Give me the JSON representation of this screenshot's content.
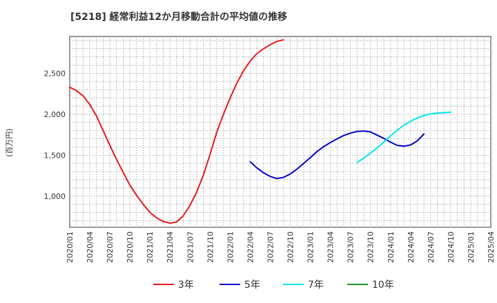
{
  "chart_data": {
    "type": "line",
    "title": "[5218]  経常利益12か月移動合計の平均値の推移",
    "ylabel": "(百万円)",
    "xlabel": "",
    "ylim": [
      620,
      2950
    ],
    "yticks": [
      1000,
      1500,
      2000,
      2500
    ],
    "ytick_labels": [
      "1,000",
      "1,500",
      "2,000",
      "2,500"
    ],
    "x_labels": [
      "2020/01",
      "2020/04",
      "2020/07",
      "2020/10",
      "2021/01",
      "2021/04",
      "2021/07",
      "2021/10",
      "2022/01",
      "2022/04",
      "2022/07",
      "2022/10",
      "2023/01",
      "2023/04",
      "2023/07",
      "2023/10",
      "2024/01",
      "2024/04",
      "2024/07",
      "2024/10",
      "2025/01",
      "2025/04"
    ],
    "series": [
      {
        "name": "3年",
        "color": "#e41a1c",
        "values": [
          2330,
          2290,
          2225,
          2120,
          1980,
          1800,
          1620,
          1450,
          1290,
          1135,
          1010,
          900,
          800,
          735,
          690,
          670,
          685,
          760,
          890,
          1050,
          1260,
          1510,
          1780,
          2000,
          2200,
          2380,
          2530,
          2650,
          2740,
          2800,
          2850,
          2890,
          2910
        ]
      },
      {
        "name": "5年",
        "color": "#0000cc",
        "values": [
          null,
          null,
          null,
          null,
          null,
          null,
          null,
          null,
          null,
          null,
          null,
          null,
          null,
          null,
          null,
          null,
          null,
          null,
          null,
          null,
          null,
          null,
          null,
          null,
          null,
          null,
          null,
          1420,
          1345,
          1285,
          1240,
          1215,
          1230,
          1270,
          1330,
          1400,
          1470,
          1545,
          1605,
          1655,
          1700,
          1740,
          1770,
          1790,
          1795,
          1785,
          1745,
          1705,
          1660,
          1620,
          1610,
          1625,
          1675,
          1760
        ]
      },
      {
        "name": "7年",
        "color": "#00e5ee",
        "values": [
          null,
          null,
          null,
          null,
          null,
          null,
          null,
          null,
          null,
          null,
          null,
          null,
          null,
          null,
          null,
          null,
          null,
          null,
          null,
          null,
          null,
          null,
          null,
          null,
          null,
          null,
          null,
          null,
          null,
          null,
          null,
          null,
          null,
          null,
          null,
          null,
          null,
          null,
          null,
          null,
          null,
          null,
          null,
          1410,
          1465,
          1525,
          1590,
          1660,
          1735,
          1805,
          1865,
          1915,
          1955,
          1985,
          2005,
          2015,
          2020,
          2025
        ]
      },
      {
        "name": "10年",
        "color": "#228b22",
        "values": []
      }
    ]
  }
}
